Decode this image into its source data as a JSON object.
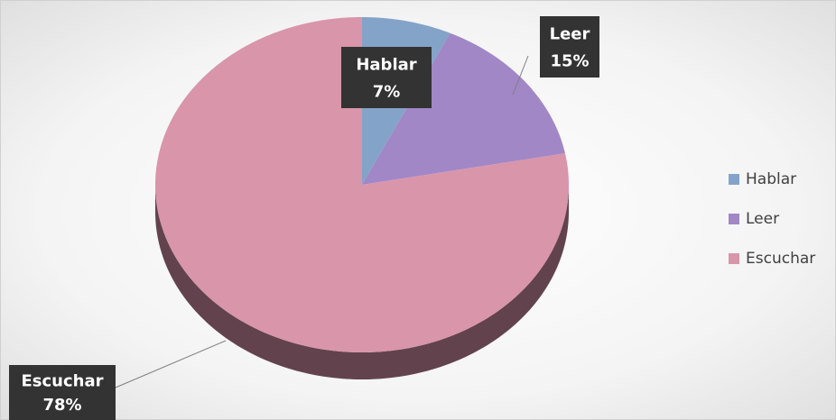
{
  "chart_data": {
    "type": "pie3d",
    "categories": [
      "Hablar",
      "Leer",
      "Escuchar"
    ],
    "values": [
      7,
      15,
      78
    ],
    "value_labels": [
      "7%",
      "15%",
      "78%"
    ],
    "colors": [
      "#84a3c9",
      "#a187c6",
      "#d995aa"
    ],
    "legend": "right"
  }
}
